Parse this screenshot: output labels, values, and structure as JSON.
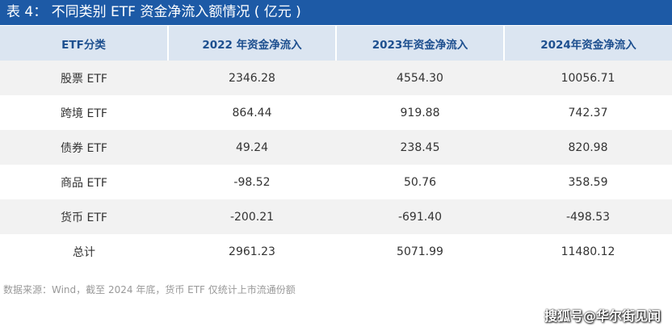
{
  "title": "表 4： 不同类别 ETF 资金净流入额情况 ( 亿元 )",
  "table": {
    "header": [
      "ETF分类",
      "2022 年资金净流入",
      "2023年资金净流入",
      "2024年资金净流入"
    ],
    "rows": [
      [
        "股票 ETF",
        "2346.28",
        "4554.30",
        "10056.71"
      ],
      [
        "跨境 ETF",
        "864.44",
        "919.88",
        "742.37"
      ],
      [
        "债券 ETF",
        "49.24",
        "238.45",
        "820.98"
      ],
      [
        "商品 ETF",
        "-98.52",
        "50.76",
        "358.59"
      ],
      [
        "货币 ETF",
        "-200.21",
        "-691.40",
        "-498.53"
      ],
      [
        "总计",
        "2961.23",
        "5071.99",
        "11480.12"
      ]
    ]
  },
  "source": "数据来源：Wind，截至 2024 年底，货币 ETF 仅统计上市流通份额",
  "watermark": "搜狐号@华尔街见闻"
}
